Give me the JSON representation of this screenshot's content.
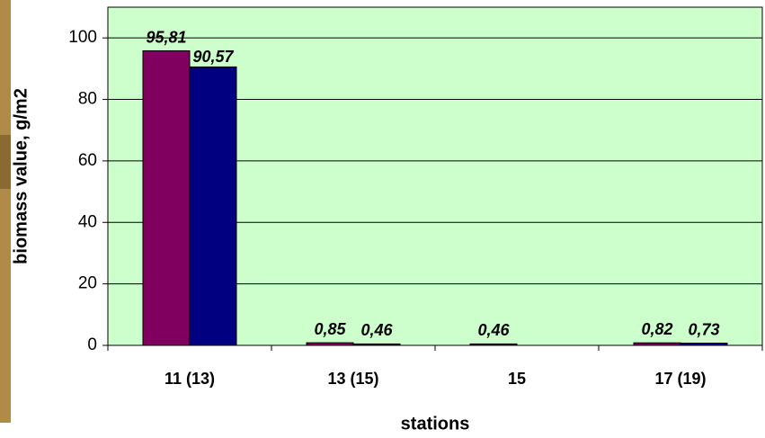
{
  "chart_data": {
    "type": "bar",
    "x_label": "stations",
    "y_label": "biomass value, g/m2",
    "categories": [
      "11 (13)",
      "13 (15)",
      "15",
      "17 (19)"
    ],
    "series": [
      {
        "color": "#800060",
        "values": [
          95.81,
          0.85,
          0.46,
          0.82
        ],
        "value_labels": [
          "95,81",
          "0,85",
          "0,46",
          "0,82"
        ]
      },
      {
        "color": "#000080",
        "values": [
          90.57,
          0.46,
          null,
          0.73
        ],
        "value_labels": [
          "90,57",
          "0,46",
          null,
          "0,73"
        ]
      }
    ],
    "ylim": [
      0,
      110
    ],
    "yticks": [
      0,
      20,
      40,
      60,
      80,
      100
    ],
    "grid": true,
    "plot_background": "#ccffcc"
  }
}
